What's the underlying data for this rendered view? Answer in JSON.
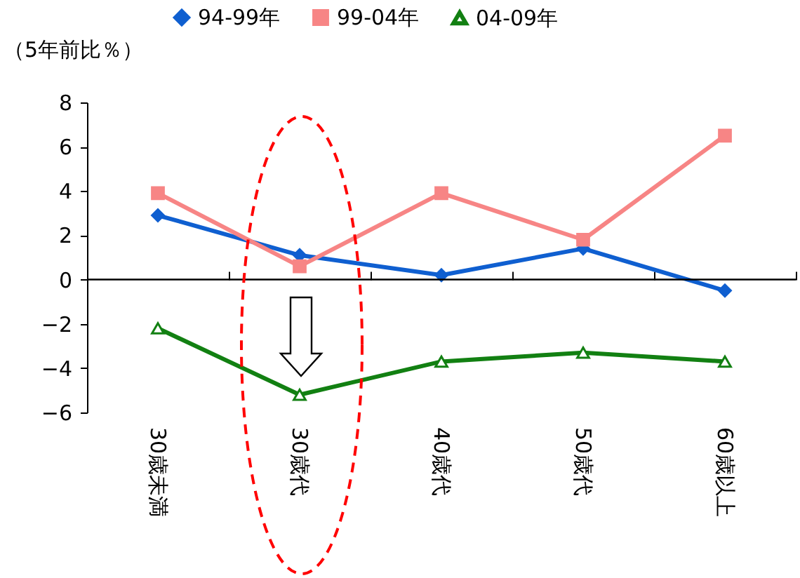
{
  "chart_data": {
    "type": "line",
    "ylabel": "（5年前比％）",
    "categories": [
      "30歳未満",
      "30歳代",
      "40歳代",
      "50歳代",
      "60歳以上"
    ],
    "series": [
      {
        "name": "94-99年",
        "color": "#0f5fd0",
        "marker": "diamond",
        "values": [
          2.9,
          1.1,
          0.2,
          1.4,
          -0.5
        ]
      },
      {
        "name": "99-04年",
        "color": "#f78585",
        "marker": "square",
        "values": [
          3.9,
          0.6,
          3.9,
          1.8,
          6.5
        ]
      },
      {
        "name": "04-09年",
        "color": "#128012",
        "marker": "triangle",
        "values": [
          -2.2,
          -5.2,
          -3.7,
          -3.3,
          -3.7
        ]
      }
    ],
    "ylim": [
      -6,
      8
    ],
    "yticks": [
      -6,
      -4,
      -2,
      0,
      2,
      4,
      6,
      8
    ],
    "grid": false,
    "ref_lines": [
      {
        "axis": "y",
        "value": 0,
        "color": "#000000",
        "line_style": "solid"
      }
    ],
    "legend": "top",
    "line_style": "solid"
  }
}
